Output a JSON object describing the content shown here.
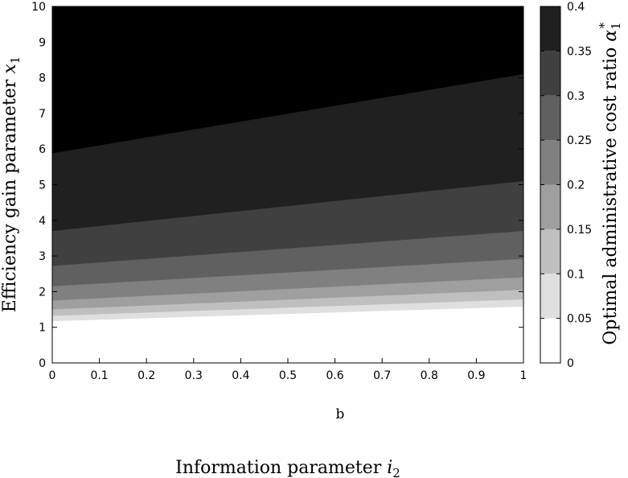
{
  "chart_data": {
    "type": "heatmap",
    "subtype": "filled-contour",
    "xlabel_text": "Information parameter ",
    "xlabel_var": "i",
    "xlabel_sub": "2",
    "ylabel_text": "Efficiency gain parameter ",
    "ylabel_var": "x",
    "ylabel_sub": "1",
    "colorbar_label_text": "Optimal administrative cost ratio ",
    "colorbar_label_var": "α",
    "colorbar_label_sub": "1",
    "colorbar_label_sup": "*",
    "annotation": "b",
    "xlim": [
      0,
      1
    ],
    "ylim": [
      0,
      10
    ],
    "clim": [
      0,
      0.4
    ],
    "xticks": [
      "0",
      "0.1",
      "0.2",
      "0.3",
      "0.4",
      "0.5",
      "0.6",
      "0.7",
      "0.8",
      "0.9",
      "1"
    ],
    "yticks": [
      "0",
      "1",
      "2",
      "3",
      "4",
      "5",
      "6",
      "7",
      "8",
      "9",
      "10"
    ],
    "colorbar_ticks": [
      "0",
      "0.05",
      "0.1",
      "0.15",
      "0.2",
      "0.25",
      "0.3",
      "0.35",
      "0.4"
    ],
    "colormap": "gray-reversed",
    "contour_levels": [
      {
        "level": 0.05,
        "x1_at_i0": 1.17,
        "x1_at_i1": 1.58
      },
      {
        "level": 0.1,
        "x1_at_i0": 1.32,
        "x1_at_i1": 1.78
      },
      {
        "level": 0.15,
        "x1_at_i0": 1.5,
        "x1_at_i1": 2.05
      },
      {
        "level": 0.2,
        "x1_at_i0": 1.75,
        "x1_at_i1": 2.4
      },
      {
        "level": 0.25,
        "x1_at_i0": 2.15,
        "x1_at_i1": 2.92
      },
      {
        "level": 0.3,
        "x1_at_i0": 2.72,
        "x1_at_i1": 3.7
      },
      {
        "level": 0.35,
        "x1_at_i0": 3.7,
        "x1_at_i1": 5.1
      },
      {
        "level": 0.4,
        "x1_at_i0": 5.88,
        "x1_at_i1": 8.1
      }
    ]
  }
}
